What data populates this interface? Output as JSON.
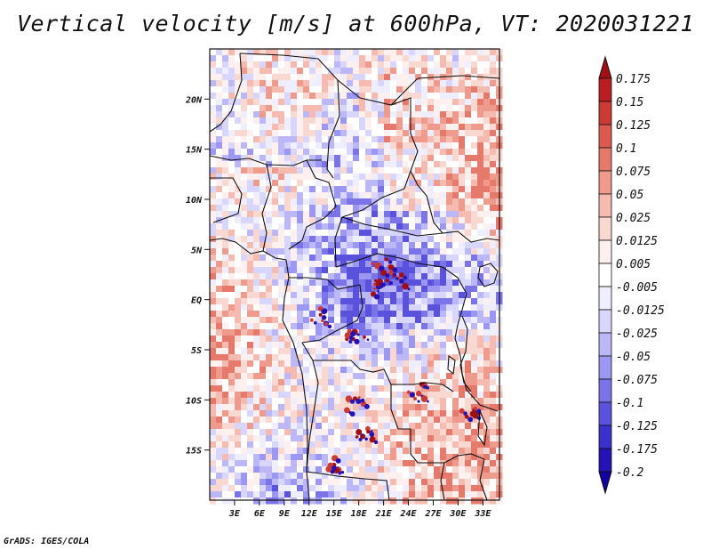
{
  "title": "Vertical velocity [m/s] at 600hPa, VT: 2020031221",
  "credit": "GrADS: IGES/COLA",
  "map": {
    "lat_range": [
      -20,
      25
    ],
    "lon_range": [
      0,
      35
    ],
    "lat_ticks": [
      {
        "value": 20,
        "label": "20N"
      },
      {
        "value": 15,
        "label": "15N"
      },
      {
        "value": 10,
        "label": "10N"
      },
      {
        "value": 5,
        "label": "5N"
      },
      {
        "value": 0,
        "label": "EQ"
      },
      {
        "value": -5,
        "label": "5S"
      },
      {
        "value": -10,
        "label": "10S"
      },
      {
        "value": -15,
        "label": "15S"
      }
    ],
    "lon_ticks": [
      {
        "value": 3,
        "label": "3E"
      },
      {
        "value": 6,
        "label": "6E"
      },
      {
        "value": 9,
        "label": "9E"
      },
      {
        "value": 12,
        "label": "12E"
      },
      {
        "value": 15,
        "label": "15E"
      },
      {
        "value": 18,
        "label": "18E"
      },
      {
        "value": 21,
        "label": "21E"
      },
      {
        "value": 24,
        "label": "24E"
      },
      {
        "value": 27,
        "label": "27E"
      },
      {
        "value": 30,
        "label": "30E"
      },
      {
        "value": 33,
        "label": "33E"
      }
    ]
  },
  "colorbar": {
    "levels": [
      "0.175",
      "0.15",
      "0.125",
      "0.1",
      "0.075",
      "0.05",
      "0.025",
      "0.0125",
      "0.005",
      "-0.005",
      "-0.0125",
      "-0.025",
      "-0.05",
      "-0.075",
      "-0.1",
      "-0.125",
      "-0.175",
      "-0.2"
    ],
    "colors": [
      "#a00f14",
      "#b81e22",
      "#cc3a35",
      "#dc5a4f",
      "#e57a6c",
      "#ee9a8c",
      "#f5bab0",
      "#fad8d2",
      "#fdf0ee",
      "#ffffff",
      "#efeefe",
      "#d8d6fc",
      "#bcb8f8",
      "#9c97f2",
      "#7b74e8",
      "#5a52dc",
      "#3a30cc",
      "#2412b4",
      "#1200a0"
    ]
  }
}
